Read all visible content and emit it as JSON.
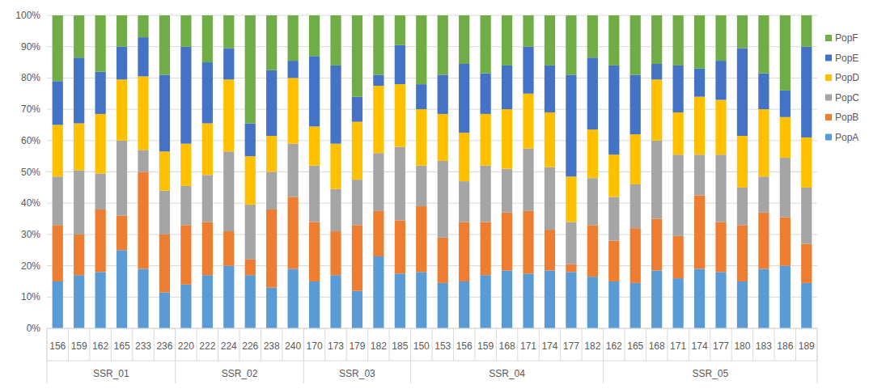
{
  "chart_data": {
    "type": "bar",
    "stacked": true,
    "legend": "right",
    "grid": true,
    "categories": [
      "156",
      "159",
      "162",
      "165",
      "233",
      "236",
      "220",
      "222",
      "224",
      "226",
      "238",
      "240",
      "170",
      "173",
      "179",
      "182",
      "185",
      "150",
      "153",
      "156",
      "159",
      "168",
      "171",
      "174",
      "177",
      "182",
      "162",
      "165",
      "168",
      "171",
      "174",
      "177",
      "180",
      "183",
      "186",
      "189"
    ],
    "groups": [
      {
        "name": "SSR_01",
        "count": 6
      },
      {
        "name": "SSR_02",
        "count": 6
      },
      {
        "name": "SSR_03",
        "count": 5
      },
      {
        "name": "SSR_04",
        "count": 9
      },
      {
        "name": "SSR_05",
        "count": 10
      }
    ],
    "ylim": [
      0,
      100
    ],
    "yticks": [
      {
        "value": 0,
        "label": "0%"
      },
      {
        "value": 10,
        "label": "10%"
      },
      {
        "value": 20,
        "label": "20%"
      },
      {
        "value": 30,
        "label": "30%"
      },
      {
        "value": 40,
        "label": "40%"
      },
      {
        "value": 50,
        "label": "50%"
      },
      {
        "value": 60,
        "label": "60%"
      },
      {
        "value": 70,
        "label": "70%"
      },
      {
        "value": 80,
        "label": "80%"
      },
      {
        "value": 90,
        "label": "90%"
      },
      {
        "value": 100,
        "label": "100%"
      }
    ],
    "series": [
      {
        "name": "PopA",
        "color": "#5b9bd5",
        "values": [
          15,
          17,
          18,
          25,
          19,
          11.5,
          14,
          17,
          20,
          17,
          13,
          19,
          15,
          17,
          12,
          23,
          17.5,
          18,
          14.5,
          15,
          17,
          18.5,
          17.5,
          18.5,
          18,
          16.5,
          15,
          14.5,
          18.5,
          16,
          19,
          18,
          15,
          19,
          20,
          14.5
        ]
      },
      {
        "name": "PopB",
        "color": "#ed7d31",
        "values": [
          18,
          13,
          20,
          11,
          31,
          18.5,
          19,
          17,
          11,
          5,
          25,
          23,
          19,
          14,
          21,
          14.5,
          17,
          21,
          14.5,
          19,
          17,
          18.5,
          20,
          13,
          2.5,
          16.5,
          13,
          17.5,
          16.5,
          13.5,
          23.5,
          16,
          18,
          18,
          15.5,
          12.5
        ]
      },
      {
        "name": "PopC",
        "color": "#a5a5a5",
        "values": [
          15.5,
          20.5,
          11.5,
          24,
          7,
          14,
          12.5,
          15,
          25.5,
          17.5,
          12,
          17,
          18,
          13.5,
          14.5,
          18.5,
          23.5,
          13,
          24.5,
          13,
          18,
          14,
          20,
          20,
          13.5,
          15,
          14,
          14,
          25,
          26,
          13,
          21.5,
          12,
          11.5,
          19,
          18
        ]
      },
      {
        "name": "PopD",
        "color": "#ffc000",
        "values": [
          16.5,
          15,
          19,
          19.5,
          23.5,
          12.5,
          13.5,
          16.5,
          23,
          15.5,
          11.5,
          21,
          12.5,
          14.5,
          18.5,
          21.5,
          20,
          18,
          15,
          15.5,
          16.5,
          19,
          17.5,
          17.5,
          14.5,
          15.5,
          13.5,
          16,
          19.5,
          13.5,
          18.5,
          17.5,
          16.5,
          21.5,
          13,
          16
        ]
      },
      {
        "name": "PopE",
        "color": "#4472c4",
        "values": [
          14,
          21,
          13.5,
          10.5,
          12.5,
          24.5,
          31,
          19.5,
          10,
          10.5,
          21,
          5.5,
          22.5,
          25,
          8,
          3.5,
          12.5,
          8,
          12.5,
          22,
          13,
          14,
          15,
          15,
          32.5,
          23,
          28.5,
          19,
          5,
          15,
          9,
          12.5,
          28,
          11.5,
          8.5,
          29
        ]
      },
      {
        "name": "PopF",
        "color": "#70ad47",
        "values": [
          21,
          13.5,
          18,
          10,
          7,
          19,
          10,
          15,
          10.5,
          34.5,
          17.5,
          14.5,
          13,
          16,
          26,
          19,
          9.5,
          22,
          19,
          15.5,
          18.5,
          16,
          10,
          16,
          19,
          13.5,
          16,
          19,
          15.5,
          16,
          17,
          14.5,
          10.5,
          18.5,
          24,
          10
        ]
      }
    ]
  }
}
